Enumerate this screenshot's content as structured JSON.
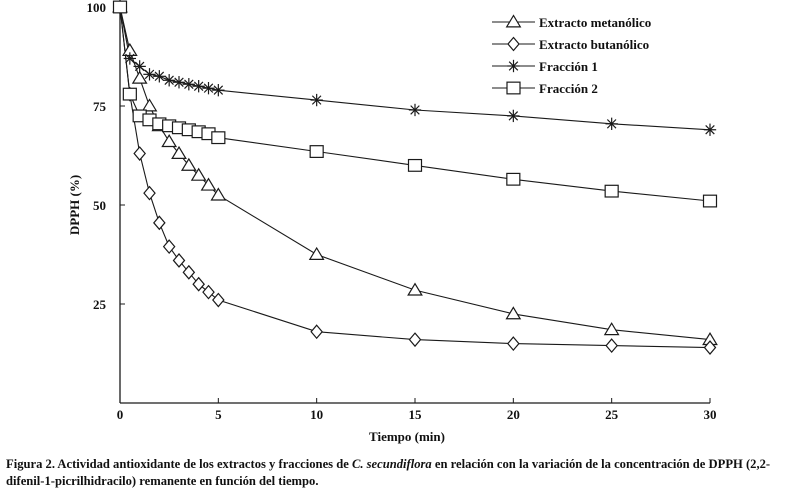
{
  "chart_data": {
    "type": "line",
    "title": "",
    "xlabel": "Tiempo (min)",
    "ylabel": "DPPH (%)",
    "xlim": [
      0,
      30
    ],
    "ylim": [
      0,
      100
    ],
    "xticks": [
      "0",
      "5",
      "10",
      "15",
      "20",
      "25",
      "30"
    ],
    "yticks": [
      "25",
      "50",
      "75",
      "100"
    ],
    "grid": false,
    "legend_position": "top-right",
    "series": [
      {
        "name": "Extracto metanólico",
        "marker": "triangle",
        "x": [
          0,
          0.5,
          1,
          1.5,
          2,
          2.5,
          3,
          3.5,
          4,
          4.5,
          5,
          10,
          15,
          20,
          25,
          30
        ],
        "y": [
          100,
          89,
          82,
          75,
          70,
          66,
          63,
          60,
          57.5,
          55,
          52.5,
          37.5,
          28.5,
          22.5,
          18.5,
          16
        ]
      },
      {
        "name": "Extracto butanólico",
        "marker": "diamond",
        "x": [
          0,
          0.5,
          1,
          1.5,
          2,
          2.5,
          3,
          3.5,
          4,
          4.5,
          5,
          10,
          15,
          20,
          25,
          30
        ],
        "y": [
          100,
          78,
          63,
          53,
          45.5,
          39.5,
          36,
          33,
          30,
          28,
          26,
          18,
          16,
          15,
          14.5,
          14
        ]
      },
      {
        "name": "Fracción 1",
        "marker": "star",
        "x": [
          0,
          0.5,
          1,
          1.5,
          2,
          2.5,
          3,
          3.5,
          4,
          4.5,
          5,
          10,
          15,
          20,
          25,
          30
        ],
        "y": [
          100,
          87,
          85,
          83,
          82.5,
          81.5,
          81,
          80.5,
          80,
          79.5,
          79,
          76.5,
          74,
          72.5,
          70.5,
          69
        ]
      },
      {
        "name": "Fracción 2",
        "marker": "square",
        "x": [
          0,
          0.5,
          1,
          1.5,
          2,
          2.5,
          3,
          3.5,
          4,
          4.5,
          5,
          10,
          15,
          20,
          25,
          30
        ],
        "y": [
          100,
          78,
          72.5,
          71.5,
          70.5,
          70,
          69.5,
          69,
          68.5,
          68,
          67,
          63.5,
          60,
          56.5,
          53.5,
          51
        ]
      }
    ]
  },
  "caption": {
    "part1": "Figura 2. Actividad antioxidante de los extractos y fracciones de ",
    "species": "C.  secundiflora",
    "part2": " en relación con la variación de la concentración de DPPH (2,2-difenil-1-picrilhidracilo) remanente en función del tiempo."
  },
  "colors": {
    "stroke": "#1a1a1a",
    "background": "#ffffff"
  }
}
